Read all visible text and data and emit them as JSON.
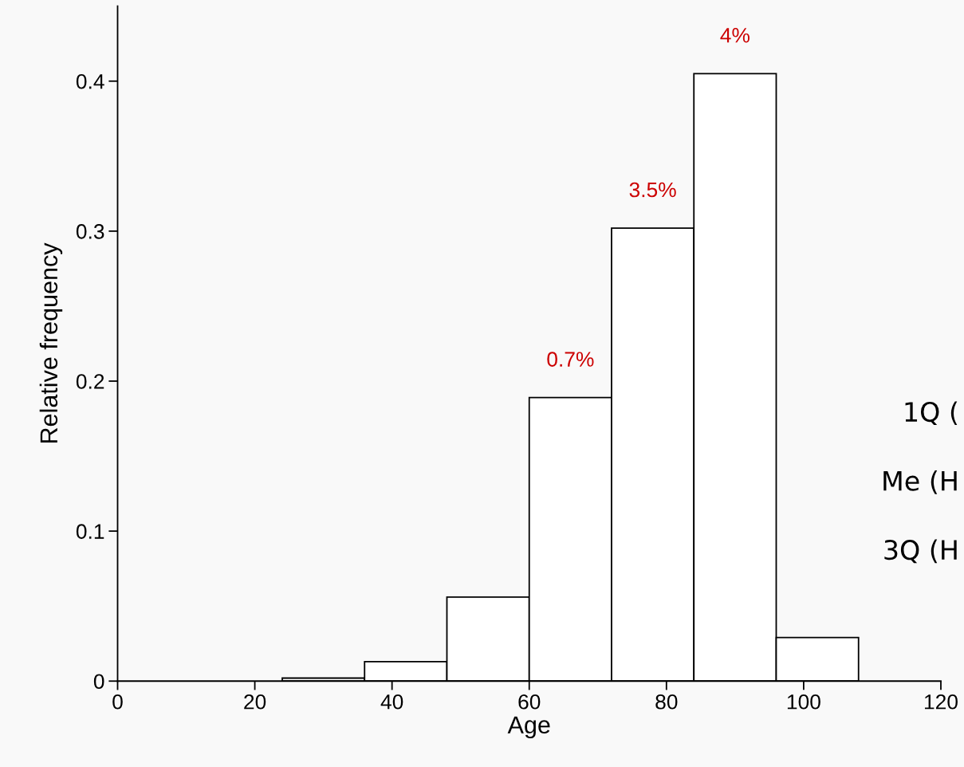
{
  "chart_data": {
    "type": "histogram",
    "xlabel": "Age",
    "ylabel": "Relative frequency",
    "bins": [
      24,
      36,
      48,
      60,
      72,
      84,
      96,
      108
    ],
    "values": [
      0.002,
      0.013,
      0.056,
      0.189,
      0.302,
      0.405,
      0.029
    ],
    "color": "#ffffff",
    "xlim": [
      0,
      120
    ],
    "xticks": [
      0,
      20,
      40,
      60,
      80,
      100,
      120
    ],
    "ylim": [
      0,
      0.45
    ],
    "yticks": [
      0,
      0.1,
      0.2,
      0.3,
      0.4
    ],
    "grid": false,
    "annotations": [
      {
        "text": "0.7%",
        "x": 66,
        "y": 0.189
      },
      {
        "text": "3.5%",
        "x": 78,
        "y": 0.302
      },
      {
        "text": "4%",
        "x": 90,
        "y": 0.405
      },
      "1Q (",
      "Me (H",
      "3Q (H"
    ]
  }
}
